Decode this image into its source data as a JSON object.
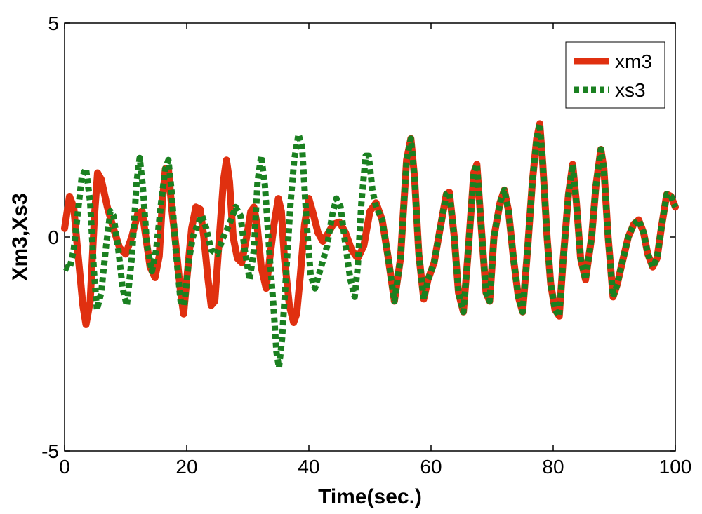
{
  "chart_data": {
    "type": "line",
    "title": "",
    "xlabel": "Time(sec.)",
    "ylabel": "Xm3,Xs3",
    "xlim": [
      0,
      100
    ],
    "ylim": [
      -5,
      5
    ],
    "xticks": [
      0,
      20,
      40,
      60,
      80,
      100
    ],
    "yticks": [
      -5,
      0,
      5
    ],
    "xtick_labels": [
      "0",
      "20",
      "40",
      "60",
      "80",
      "100"
    ],
    "ytick_labels": [
      "-5",
      "0",
      "5"
    ],
    "grid": false,
    "legend_position": "top-right",
    "series": [
      {
        "name": "xm3",
        "color": "#e03010",
        "style": "solid",
        "points": [
          [
            0,
            0.2
          ],
          [
            0.8,
            0.95
          ],
          [
            1.5,
            0.7
          ],
          [
            2.2,
            -0.4
          ],
          [
            3.0,
            -1.6
          ],
          [
            3.5,
            -2.05
          ],
          [
            4.2,
            -1.5
          ],
          [
            4.9,
            0.5
          ],
          [
            5.4,
            1.5
          ],
          [
            6.0,
            1.35
          ],
          [
            7.0,
            0.7
          ],
          [
            8.0,
            0.2
          ],
          [
            9.0,
            -0.25
          ],
          [
            10.0,
            -0.4
          ],
          [
            11.0,
            0.0
          ],
          [
            12.0,
            0.55
          ],
          [
            12.7,
            0.6
          ],
          [
            13.3,
            0.0
          ],
          [
            14.0,
            -0.7
          ],
          [
            14.8,
            -0.95
          ],
          [
            15.5,
            -0.45
          ],
          [
            16.0,
            0.8
          ],
          [
            16.5,
            1.6
          ],
          [
            17.0,
            1.6
          ],
          [
            17.6,
            0.6
          ],
          [
            18.3,
            -0.3
          ],
          [
            19.0,
            -1.3
          ],
          [
            19.5,
            -1.8
          ],
          [
            20.0,
            -1.0
          ],
          [
            20.8,
            0.2
          ],
          [
            21.5,
            0.7
          ],
          [
            22.2,
            0.65
          ],
          [
            22.8,
            0.0
          ],
          [
            23.5,
            -1.0
          ],
          [
            24.0,
            -1.6
          ],
          [
            24.6,
            -1.5
          ],
          [
            25.2,
            -0.3
          ],
          [
            26.0,
            1.3
          ],
          [
            26.5,
            1.8
          ],
          [
            27.0,
            1.3
          ],
          [
            27.6,
            0.0
          ],
          [
            28.3,
            -0.5
          ],
          [
            29.0,
            -0.6
          ],
          [
            29.8,
            0.0
          ],
          [
            30.5,
            0.6
          ],
          [
            31.0,
            0.7
          ],
          [
            31.5,
            0.3
          ],
          [
            32.2,
            -0.7
          ],
          [
            33.0,
            -1.2
          ],
          [
            33.6,
            -0.5
          ],
          [
            34.3,
            0.3
          ],
          [
            35.0,
            0.9
          ],
          [
            35.5,
            0.6
          ],
          [
            36.0,
            -0.5
          ],
          [
            36.8,
            -1.6
          ],
          [
            37.5,
            -2.0
          ],
          [
            38.0,
            -1.8
          ],
          [
            38.6,
            -0.9
          ],
          [
            39.3,
            0.3
          ],
          [
            40.0,
            0.9
          ],
          [
            40.6,
            0.6
          ],
          [
            41.5,
            0.1
          ],
          [
            42.3,
            -0.1
          ],
          [
            43.0,
            0.05
          ],
          [
            44.0,
            0.3
          ],
          [
            45.0,
            0.35
          ],
          [
            46.0,
            0.1
          ],
          [
            47.0,
            -0.3
          ],
          [
            48.0,
            -0.5
          ],
          [
            49.0,
            -0.2
          ],
          [
            50.0,
            0.6
          ],
          [
            51.0,
            0.8
          ],
          [
            52.0,
            0.4
          ],
          [
            53.0,
            -0.5
          ],
          [
            54.0,
            -1.5
          ],
          [
            55.0,
            -0.5
          ],
          [
            56.0,
            1.8
          ],
          [
            56.7,
            2.3
          ],
          [
            57.3,
            1.4
          ],
          [
            58.0,
            -0.4
          ],
          [
            58.8,
            -1.45
          ],
          [
            59.5,
            -1.0
          ],
          [
            60.5,
            -0.6
          ],
          [
            61.5,
            0.2
          ],
          [
            62.5,
            1.0
          ],
          [
            63.0,
            1.05
          ],
          [
            63.8,
            0.0
          ],
          [
            64.5,
            -1.3
          ],
          [
            65.3,
            -1.75
          ],
          [
            66.0,
            -0.5
          ],
          [
            67.0,
            1.5
          ],
          [
            67.5,
            1.7
          ],
          [
            68.2,
            0.3
          ],
          [
            69.0,
            -1.3
          ],
          [
            69.6,
            -1.5
          ],
          [
            70.3,
            0.0
          ],
          [
            71.3,
            0.8
          ],
          [
            72.0,
            1.1
          ],
          [
            72.7,
            0.6
          ],
          [
            73.5,
            -0.5
          ],
          [
            74.3,
            -1.4
          ],
          [
            75.0,
            -1.75
          ],
          [
            75.8,
            -0.3
          ],
          [
            76.6,
            1.3
          ],
          [
            77.3,
            2.3
          ],
          [
            77.8,
            2.65
          ],
          [
            78.3,
            1.7
          ],
          [
            79.0,
            0.0
          ],
          [
            79.6,
            -1.1
          ],
          [
            80.3,
            -1.7
          ],
          [
            81.0,
            -1.85
          ],
          [
            81.6,
            -0.6
          ],
          [
            82.5,
            1.0
          ],
          [
            83.2,
            1.7
          ],
          [
            83.8,
            0.8
          ],
          [
            84.5,
            -0.5
          ],
          [
            85.3,
            -1.0
          ],
          [
            86.3,
            0.0
          ],
          [
            87.0,
            1.2
          ],
          [
            87.8,
            2.05
          ],
          [
            88.3,
            1.6
          ],
          [
            89.0,
            0.0
          ],
          [
            89.8,
            -1.4
          ],
          [
            90.5,
            -1.1
          ],
          [
            91.3,
            -0.6
          ],
          [
            92.3,
            0.0
          ],
          [
            93.2,
            0.3
          ],
          [
            94.0,
            0.4
          ],
          [
            94.8,
            0.1
          ],
          [
            95.5,
            -0.4
          ],
          [
            96.3,
            -0.7
          ],
          [
            97.0,
            -0.5
          ],
          [
            97.8,
            0.3
          ],
          [
            98.6,
            1.0
          ],
          [
            99.3,
            0.95
          ],
          [
            100,
            0.7
          ]
        ]
      },
      {
        "name": "xs3",
        "color": "#1a8020",
        "style": "dotted",
        "points": [
          [
            0,
            -0.7
          ],
          [
            0.8,
            -0.75
          ],
          [
            1.5,
            -0.3
          ],
          [
            2.2,
            0.6
          ],
          [
            2.8,
            1.4
          ],
          [
            3.5,
            1.6
          ],
          [
            4.2,
            0.8
          ],
          [
            4.8,
            -0.8
          ],
          [
            5.3,
            -1.7
          ],
          [
            6.0,
            -1.3
          ],
          [
            6.8,
            -0.2
          ],
          [
            7.5,
            0.6
          ],
          [
            8.0,
            0.5
          ],
          [
            8.8,
            -0.3
          ],
          [
            9.5,
            -1.2
          ],
          [
            10.2,
            -1.6
          ],
          [
            11.0,
            -0.5
          ],
          [
            11.8,
            1.3
          ],
          [
            12.3,
            1.85
          ],
          [
            12.8,
            1.2
          ],
          [
            13.5,
            -0.2
          ],
          [
            14.3,
            -0.8
          ],
          [
            15.0,
            -0.3
          ],
          [
            15.8,
            0.8
          ],
          [
            16.5,
            1.6
          ],
          [
            17.0,
            1.8
          ],
          [
            17.5,
            1.1
          ],
          [
            18.2,
            -0.3
          ],
          [
            19.0,
            -1.5
          ],
          [
            19.6,
            -1.6
          ],
          [
            20.3,
            -0.6
          ],
          [
            21.0,
            0.0
          ],
          [
            21.8,
            0.3
          ],
          [
            22.5,
            0.5
          ],
          [
            23.2,
            0.2
          ],
          [
            24.0,
            -0.3
          ],
          [
            25.0,
            -0.4
          ],
          [
            26.0,
            0.0
          ],
          [
            27.0,
            0.3
          ],
          [
            28.0,
            0.7
          ],
          [
            28.8,
            0.5
          ],
          [
            29.5,
            -0.3
          ],
          [
            30.3,
            -1.0
          ],
          [
            31.0,
            -0.3
          ],
          [
            31.6,
            1.3
          ],
          [
            32.2,
            1.9
          ],
          [
            32.8,
            1.2
          ],
          [
            33.5,
            -0.3
          ],
          [
            34.2,
            -1.6
          ],
          [
            34.7,
            -2.7
          ],
          [
            35.1,
            -3.05
          ],
          [
            35.6,
            -2.4
          ],
          [
            36.3,
            -0.8
          ],
          [
            37.0,
            0.8
          ],
          [
            37.6,
            1.8
          ],
          [
            38.3,
            2.4
          ],
          [
            38.9,
            2.1
          ],
          [
            39.6,
            0.4
          ],
          [
            40.3,
            -0.9
          ],
          [
            41.0,
            -1.2
          ],
          [
            42.0,
            -0.7
          ],
          [
            43.0,
            -0.2
          ],
          [
            43.8,
            0.5
          ],
          [
            44.5,
            0.9
          ],
          [
            45.2,
            0.7
          ],
          [
            46.0,
            -0.2
          ],
          [
            46.8,
            -1.0
          ],
          [
            47.5,
            -1.4
          ],
          [
            48.0,
            -0.7
          ],
          [
            48.6,
            0.8
          ],
          [
            49.3,
            1.9
          ],
          [
            49.8,
            1.9
          ],
          [
            50.4,
            1.1
          ],
          [
            51.0,
            0.7
          ],
          [
            52.0,
            0.4
          ],
          [
            53.0,
            -0.5
          ],
          [
            54.0,
            -1.5
          ],
          [
            55.0,
            -0.5
          ],
          [
            56.0,
            1.8
          ],
          [
            56.7,
            2.3
          ],
          [
            57.3,
            1.4
          ],
          [
            58.0,
            -0.4
          ],
          [
            58.8,
            -1.45
          ],
          [
            59.5,
            -1.0
          ],
          [
            60.5,
            -0.6
          ],
          [
            61.5,
            0.2
          ],
          [
            62.5,
            1.0
          ],
          [
            63.0,
            1.05
          ],
          [
            63.8,
            0.0
          ],
          [
            64.5,
            -1.3
          ],
          [
            65.3,
            -1.75
          ],
          [
            66.0,
            -0.5
          ],
          [
            67.0,
            1.5
          ],
          [
            67.5,
            1.7
          ],
          [
            68.2,
            0.3
          ],
          [
            69.0,
            -1.3
          ],
          [
            69.6,
            -1.5
          ],
          [
            70.3,
            0.0
          ],
          [
            71.3,
            0.8
          ],
          [
            72.0,
            1.1
          ],
          [
            72.7,
            0.6
          ],
          [
            73.5,
            -0.5
          ],
          [
            74.3,
            -1.4
          ],
          [
            75.0,
            -1.75
          ],
          [
            75.8,
            -0.3
          ],
          [
            76.6,
            1.3
          ],
          [
            77.3,
            2.3
          ],
          [
            77.8,
            2.65
          ],
          [
            78.3,
            1.7
          ],
          [
            79.0,
            0.0
          ],
          [
            79.6,
            -1.1
          ],
          [
            80.3,
            -1.7
          ],
          [
            81.0,
            -1.85
          ],
          [
            81.6,
            -0.6
          ],
          [
            82.5,
            1.0
          ],
          [
            83.2,
            1.7
          ],
          [
            83.8,
            0.8
          ],
          [
            84.5,
            -0.5
          ],
          [
            85.3,
            -1.0
          ],
          [
            86.3,
            0.0
          ],
          [
            87.0,
            1.2
          ],
          [
            87.8,
            2.05
          ],
          [
            88.3,
            1.6
          ],
          [
            89.0,
            0.0
          ],
          [
            89.8,
            -1.4
          ],
          [
            90.5,
            -1.1
          ],
          [
            91.3,
            -0.6
          ],
          [
            92.3,
            0.0
          ],
          [
            93.2,
            0.3
          ],
          [
            94.0,
            0.4
          ],
          [
            94.8,
            0.1
          ],
          [
            95.5,
            -0.4
          ],
          [
            96.3,
            -0.7
          ],
          [
            97.0,
            -0.5
          ],
          [
            97.8,
            0.3
          ],
          [
            98.6,
            1.0
          ],
          [
            99.3,
            0.95
          ],
          [
            100,
            0.7
          ]
        ]
      }
    ]
  }
}
